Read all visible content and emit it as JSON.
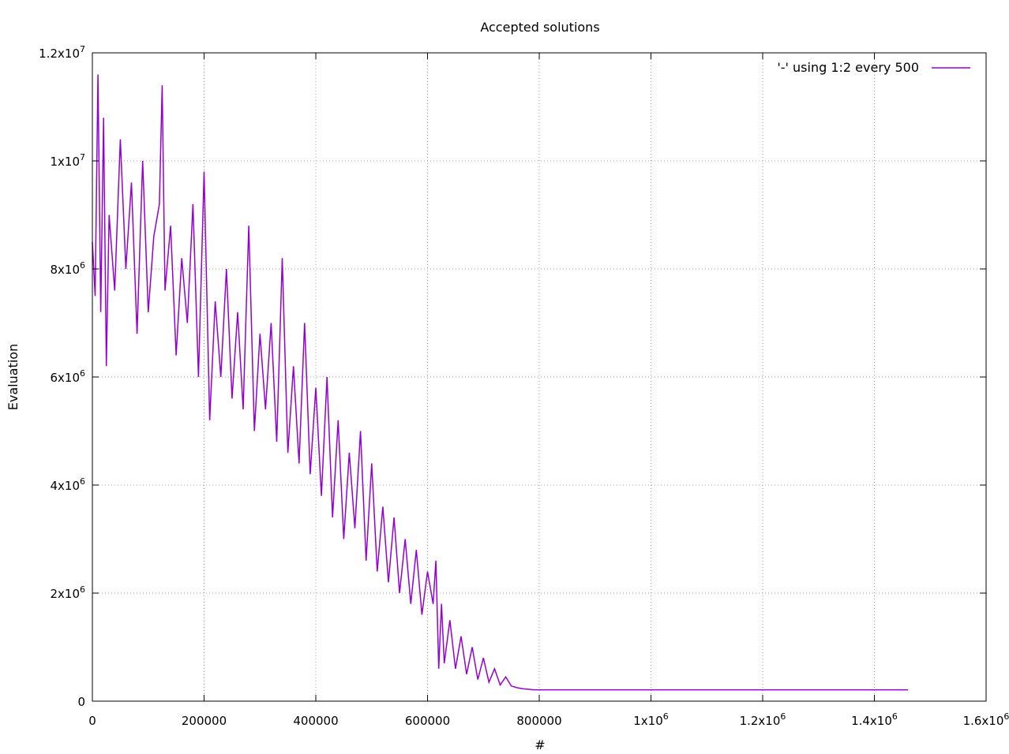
{
  "chart_data": {
    "type": "line",
    "title": "Accepted solutions",
    "xlabel": "#",
    "ylabel": "Evaluation",
    "xlim": [
      0,
      1600000
    ],
    "ylim": [
      0,
      12000000
    ],
    "x_ticks": [
      {
        "value": 0,
        "base": "0",
        "exp": ""
      },
      {
        "value": 200000,
        "base": "200000",
        "exp": ""
      },
      {
        "value": 400000,
        "base": "400000",
        "exp": ""
      },
      {
        "value": 600000,
        "base": "600000",
        "exp": ""
      },
      {
        "value": 800000,
        "base": "800000",
        "exp": ""
      },
      {
        "value": 1000000,
        "base": "1x10",
        "exp": "6"
      },
      {
        "value": 1200000,
        "base": "1.2x10",
        "exp": "6"
      },
      {
        "value": 1400000,
        "base": "1.4x10",
        "exp": "6"
      },
      {
        "value": 1600000,
        "base": "1.6x10",
        "exp": "6"
      }
    ],
    "y_ticks": [
      {
        "value": 0,
        "base": "0",
        "exp": ""
      },
      {
        "value": 2000000,
        "base": "2x10",
        "exp": "6"
      },
      {
        "value": 4000000,
        "base": "4x10",
        "exp": "6"
      },
      {
        "value": 6000000,
        "base": "6x10",
        "exp": "6"
      },
      {
        "value": 8000000,
        "base": "8x10",
        "exp": "6"
      },
      {
        "value": 10000000,
        "base": "1x10",
        "exp": "7"
      },
      {
        "value": 12000000,
        "base": "1.2x10",
        "exp": "7"
      }
    ],
    "grid": true,
    "legend_position": "top-right",
    "series": [
      {
        "name": "'-' using 1:2 every 500",
        "color": "#9400d3",
        "x": [
          0,
          5000,
          10000,
          15000,
          20000,
          25000,
          30000,
          40000,
          50000,
          60000,
          70000,
          80000,
          90000,
          100000,
          110000,
          120000,
          125000,
          130000,
          140000,
          150000,
          160000,
          170000,
          180000,
          190000,
          200000,
          210000,
          220000,
          230000,
          240000,
          250000,
          260000,
          270000,
          280000,
          290000,
          300000,
          310000,
          320000,
          330000,
          340000,
          350000,
          360000,
          370000,
          380000,
          390000,
          400000,
          410000,
          420000,
          430000,
          440000,
          450000,
          460000,
          470000,
          480000,
          490000,
          500000,
          510000,
          520000,
          530000,
          540000,
          550000,
          560000,
          570000,
          580000,
          590000,
          600000,
          610000,
          615000,
          620000,
          625000,
          630000,
          640000,
          650000,
          660000,
          670000,
          680000,
          690000,
          700000,
          710000,
          720000,
          730000,
          740000,
          750000,
          760000,
          770000,
          780000,
          790000,
          800000,
          900000,
          1000000,
          1100000,
          1200000,
          1300000,
          1400000,
          1460000
        ],
        "y": [
          8500000,
          7500000,
          11600000,
          7200000,
          10800000,
          6200000,
          9000000,
          7600000,
          10400000,
          8000000,
          9600000,
          6800000,
          10000000,
          7200000,
          8600000,
          9200000,
          11400000,
          7600000,
          8800000,
          6400000,
          8200000,
          7000000,
          9200000,
          6000000,
          9800000,
          5200000,
          7400000,
          6000000,
          8000000,
          5600000,
          7200000,
          5400000,
          8800000,
          5000000,
          6800000,
          5400000,
          7000000,
          4800000,
          8200000,
          4600000,
          6200000,
          4400000,
          7000000,
          4200000,
          5800000,
          3800000,
          6000000,
          3400000,
          5200000,
          3000000,
          4600000,
          3200000,
          5000000,
          2600000,
          4400000,
          2400000,
          3600000,
          2200000,
          3400000,
          2000000,
          3000000,
          1800000,
          2800000,
          1600000,
          2400000,
          1800000,
          2600000,
          600000,
          1800000,
          700000,
          1500000,
          600000,
          1200000,
          500000,
          1000000,
          400000,
          800000,
          350000,
          600000,
          300000,
          450000,
          280000,
          250000,
          230000,
          220000,
          210000,
          210000,
          210000,
          210000,
          210000,
          210000,
          210000,
          210000,
          210000
        ]
      }
    ]
  }
}
